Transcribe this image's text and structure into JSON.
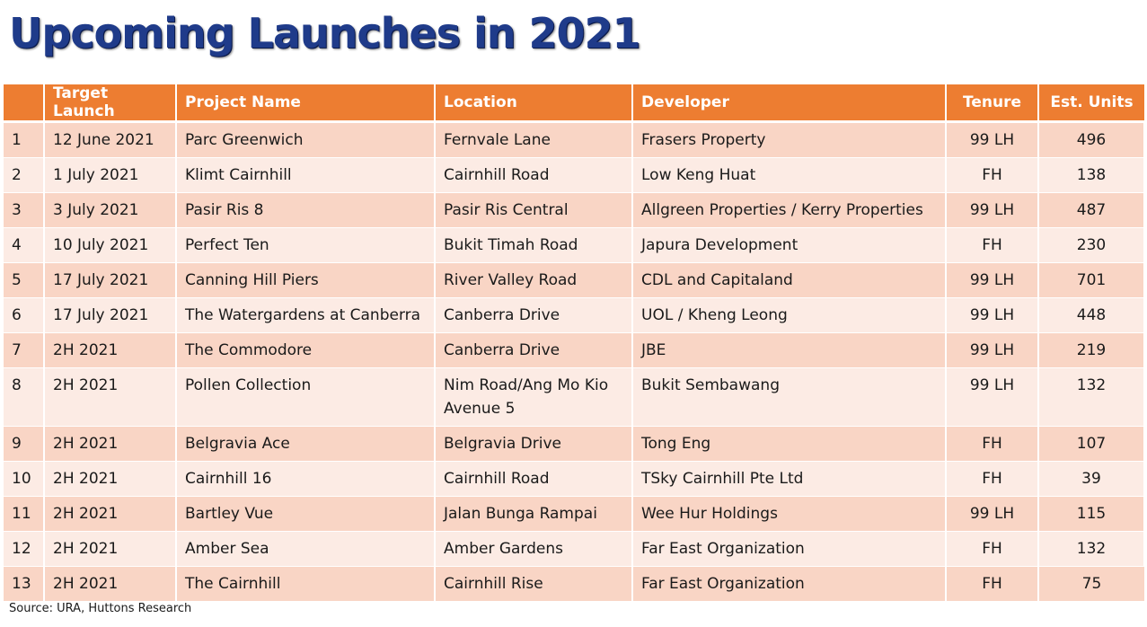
{
  "title": "Upcoming Launches in 2021",
  "table": {
    "headers": [
      "",
      "Target Launch",
      "Project Name",
      "Location",
      "Developer",
      "Tenure",
      "Est. Units"
    ],
    "rows": [
      [
        "1",
        "12 June 2021",
        "Parc Greenwich",
        "Fernvale Lane",
        "Frasers Property",
        "99 LH",
        "496"
      ],
      [
        "2",
        "1 July 2021",
        "Klimt Cairnhill",
        "Cairnhill Road",
        "Low Keng Huat",
        "FH",
        "138"
      ],
      [
        "3",
        "3 July 2021",
        "Pasir Ris 8",
        "Pasir Ris Central",
        "Allgreen Properties / Kerry Properties",
        "99 LH",
        "487"
      ],
      [
        "4",
        "10 July 2021",
        "Perfect Ten",
        "Bukit Timah Road",
        "Japura Development",
        "FH",
        "230"
      ],
      [
        "5",
        "17 July 2021",
        "Canning Hill Piers",
        "River Valley Road",
        "CDL and Capitaland",
        "99 LH",
        "701"
      ],
      [
        "6",
        "17 July 2021",
        "The Watergardens at Canberra",
        "Canberra Drive",
        "UOL / Kheng Leong",
        "99 LH",
        "448"
      ],
      [
        "7",
        "2H 2021",
        "The Commodore",
        "Canberra Drive",
        "JBE",
        "99 LH",
        "219"
      ],
      [
        "8",
        "2H 2021",
        "Pollen Collection",
        "Nim Road/Ang Mo Kio Avenue 5",
        "Bukit Sembawang",
        "99 LH",
        "132"
      ],
      [
        "9",
        "2H 2021",
        "Belgravia Ace",
        "Belgravia Drive",
        "Tong Eng",
        "FH",
        "107"
      ],
      [
        "10",
        "2H 2021",
        "Cairnhill 16",
        "Cairnhill Road",
        "TSky Cairnhill Pte Ltd",
        "FH",
        "39"
      ],
      [
        "11",
        "2H 2021",
        "Bartley Vue",
        "Jalan Bunga Rampai",
        "Wee Hur Holdings",
        "99 LH",
        "115"
      ],
      [
        "12",
        "2H 2021",
        "Amber Sea",
        "Amber Gardens",
        "Far East Organization",
        "FH",
        "132"
      ],
      [
        "13",
        "2H 2021",
        "The Cairnhill",
        "Cairnhill Rise",
        "Far East Organization",
        "FH",
        "75"
      ]
    ]
  },
  "source": "Source: URA, Huttons Research",
  "colors": {
    "header_bg": "#ed7d31",
    "row_odd": "#f9d5c5",
    "row_even": "#fcebe4",
    "title": "#1f3b8a"
  }
}
